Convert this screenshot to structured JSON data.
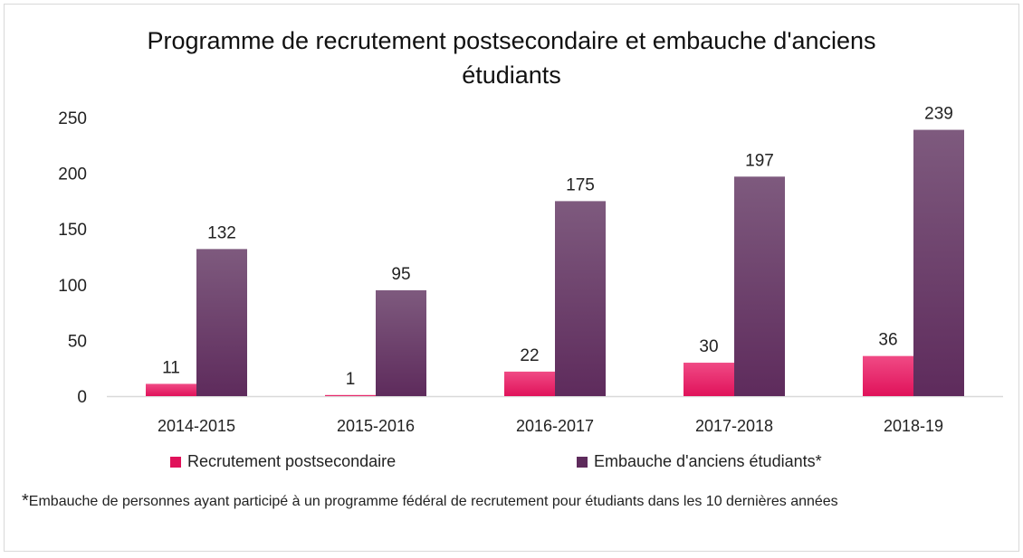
{
  "chart_data": {
    "type": "bar",
    "title_line1": "Programme de recrutement postsecondaire et embauche d'anciens",
    "title_line2": "étudiants",
    "categories": [
      "2014-2015",
      "2015-2016",
      "2016-2017",
      "2017-2018",
      "2018-19"
    ],
    "series": [
      {
        "name": "Recrutement postsecondaire",
        "values": [
          11,
          1,
          22,
          30,
          36
        ],
        "color": "#e0125a",
        "color_light": "#f04a85"
      },
      {
        "name": "Embauche d'anciens étudiants*",
        "values": [
          132,
          95,
          175,
          197,
          239
        ],
        "color": "#5e2b5c",
        "color_light": "#7e5a7e"
      }
    ],
    "ylim": [
      0,
      250
    ],
    "yticks": [
      0,
      50,
      100,
      150,
      200,
      250
    ],
    "xlabel": "",
    "ylabel": "",
    "legend_position": "bottom"
  },
  "footnote": {
    "star": "*",
    "text": "Embauche de personnes ayant participé à un programme fédéral de recrutement pour étudiants dans les 10 dernières années"
  }
}
